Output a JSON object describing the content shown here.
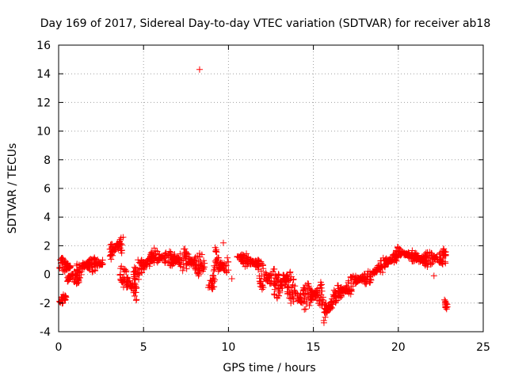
{
  "chart_data": {
    "type": "scatter",
    "title": "Day 169 of 2017, Sidereal Day-to-day VTEC variation (SDTVAR) for receiver ab18",
    "xlabel": "GPS time / hours",
    "ylabel": "SDTVAR / TECUs",
    "xlim": [
      0,
      25
    ],
    "ylim": [
      -4,
      16
    ],
    "xticks": [
      "0",
      "5",
      "10",
      "15",
      "20",
      "25"
    ],
    "yticks": [
      "-4",
      "-2",
      "0",
      "2",
      "4",
      "6",
      "8",
      "10",
      "12",
      "14",
      "16"
    ],
    "grid": true,
    "marker": "+",
    "color": "#ff0000",
    "series": [
      {
        "name": "ab18",
        "note": "approximate cloud of points read from the figure",
        "segments": [
          {
            "x": [
              0.05,
              0.5
            ],
            "center": [
              -1.8,
              -1.6
            ],
            "spread": 0.3
          },
          {
            "x": [
              0.05,
              0.7
            ],
            "center": [
              0.7,
              0.5
            ],
            "spread": 0.5
          },
          {
            "x": [
              0.5,
              1.4
            ],
            "center": [
              -0.3,
              0.3
            ],
            "spread": 0.8
          },
          {
            "x": [
              1.4,
              2.6
            ],
            "center": [
              0.6,
              0.8
            ],
            "spread": 0.6
          },
          {
            "x": [
              3.0,
              3.8
            ],
            "center": [
              1.5,
              2.3
            ],
            "spread": 0.8
          },
          {
            "x": [
              3.6,
              4.6
            ],
            "center": [
              0.2,
              -1.2
            ],
            "spread": 0.9
          },
          {
            "x": [
              4.4,
              5.4
            ],
            "center": [
              0.0,
              1.0
            ],
            "spread": 0.8
          },
          {
            "x": [
              5.4,
              6.8
            ],
            "center": [
              1.3,
              1.0
            ],
            "spread": 0.6
          },
          {
            "x": [
              6.8,
              8.6
            ],
            "center": [
              1.1,
              0.6
            ],
            "spread": 0.9
          },
          {
            "x": [
              8.8,
              9.2
            ],
            "center": [
              -1.0,
              0.0
            ],
            "spread": 0.9
          },
          {
            "x": [
              9.2,
              10.0
            ],
            "center": [
              0.9,
              0.4
            ],
            "spread": 1.0
          },
          {
            "x": [
              10.5,
              11.8
            ],
            "center": [
              1.2,
              0.7
            ],
            "spread": 0.5
          },
          {
            "x": [
              11.8,
              13.2
            ],
            "center": [
              0.1,
              -0.9
            ],
            "spread": 1.1
          },
          {
            "x": [
              13.2,
              14.2
            ],
            "center": [
              -0.2,
              -1.8
            ],
            "spread": 1.1
          },
          {
            "x": [
              14.2,
              15.6
            ],
            "center": [
              -1.7,
              -1.2
            ],
            "spread": 1.0
          },
          {
            "x": [
              15.6,
              16.2
            ],
            "center": [
              -2.6,
              -2.0
            ],
            "spread": 1.0
          },
          {
            "x": [
              16.2,
              17.4
            ],
            "center": [
              -1.6,
              -0.6
            ],
            "spread": 0.7
          },
          {
            "x": [
              17.4,
              18.4
            ],
            "center": [
              -0.4,
              -0.2
            ],
            "spread": 0.5
          },
          {
            "x": [
              18.4,
              20.0
            ],
            "center": [
              0.0,
              1.4
            ],
            "spread": 0.6
          },
          {
            "x": [
              20.0,
              21.2
            ],
            "center": [
              1.5,
              1.2
            ],
            "spread": 0.4
          },
          {
            "x": [
              21.2,
              22.8
            ],
            "center": [
              1.0,
              1.2
            ],
            "spread": 0.6
          },
          {
            "x": [
              22.7,
              22.9
            ],
            "center": [
              -2.0,
              -2.3
            ],
            "spread": 0.3
          }
        ],
        "outliers": [
          [
            8.3,
            14.3
          ],
          [
            9.7,
            2.2
          ],
          [
            10.2,
            -0.3
          ],
          [
            22.1,
            -0.1
          ]
        ]
      }
    ]
  }
}
